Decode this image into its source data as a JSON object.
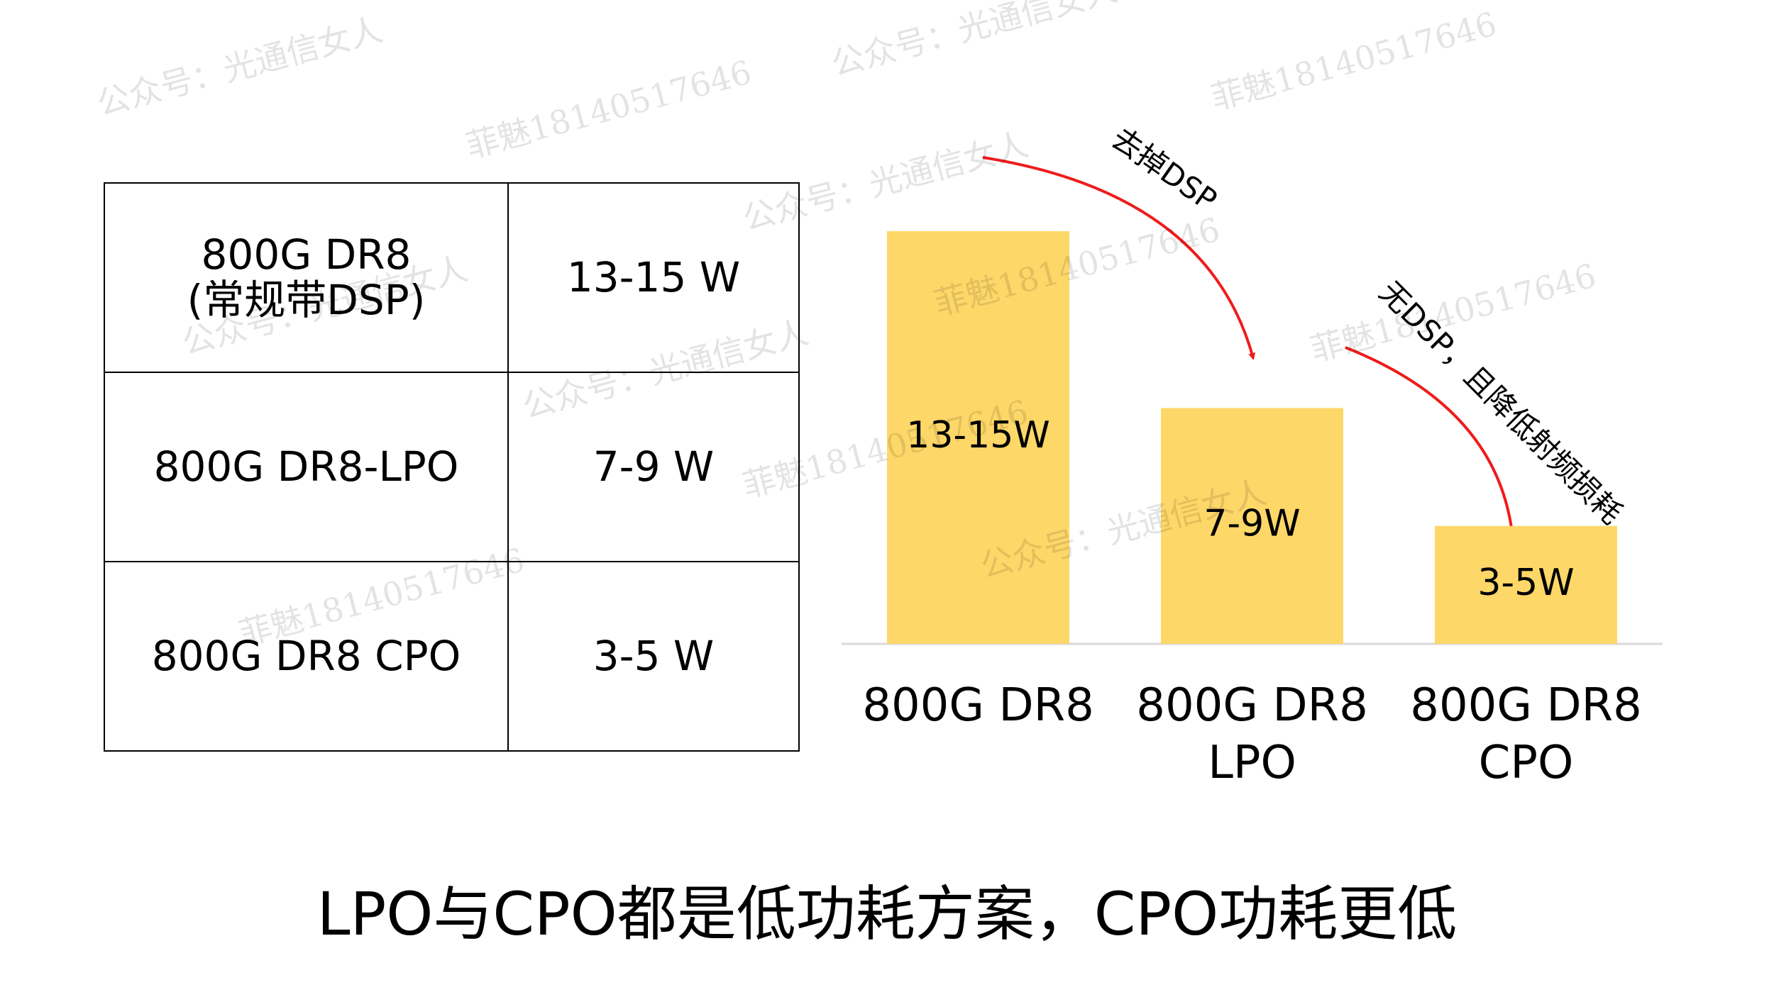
{
  "table": {
    "rows": [
      [
        "800G DR8\n(常规带DSP)",
        "13-15 W"
      ],
      [
        "800G DR8-LPO",
        "7-9 W"
      ],
      [
        "800G DR8 CPO",
        "3-5 W"
      ]
    ]
  },
  "chart_data": {
    "type": "bar",
    "title": "LPO与CPO都是低功耗方案，CPO功耗更低",
    "categories": [
      "800G DR8",
      "800G DR8 LPO",
      "800G DR8 CPO"
    ],
    "values": [
      14,
      8,
      4
    ],
    "value_labels": [
      "13-15W",
      "7-9W",
      "3-5W"
    ],
    "color": "#fdd768",
    "annotations": [
      "去掉DSP",
      "无DSP，且降低射频损耗"
    ]
  },
  "watermarks": [
    "公众号：光通信女人",
    "菲魅18140517646",
    "公众号：光通信女人",
    "菲魅18140517646",
    "公众号：光通信女人",
    "菲魅18140517646",
    "公众号：光通信女人",
    "菲魅18140517646",
    "公众号：光通信女人",
    "菲魅18140517646",
    "公众号：光通信女人",
    "菲魅18140517646"
  ]
}
